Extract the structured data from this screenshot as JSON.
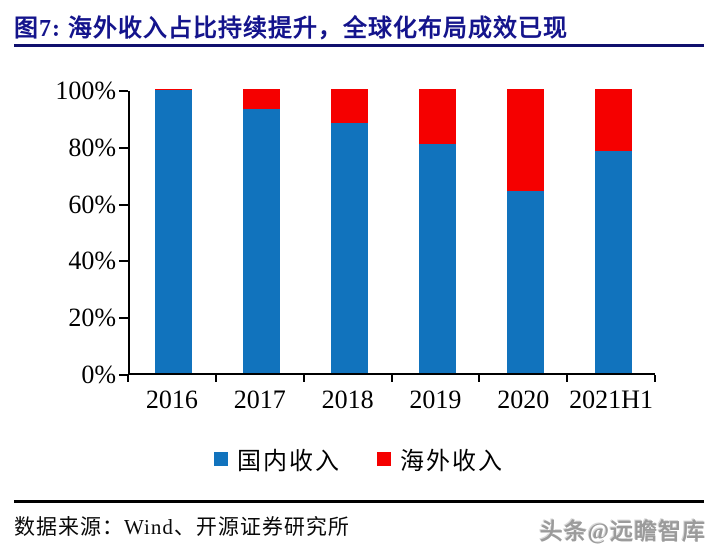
{
  "header": {
    "title": "图7:  海外收入占比持续提升，全球化布局成效已现"
  },
  "chart_data": {
    "type": "bar",
    "stacked": true,
    "title": "海外收入占比持续提升，全球化布局成效已现",
    "categories": [
      "2016",
      "2017",
      "2018",
      "2019",
      "2020",
      "2021H1"
    ],
    "series": [
      {
        "name": "国内收入",
        "color": "#1173BD",
        "values": [
          99.5,
          93,
          88,
          80.5,
          64,
          78
        ]
      },
      {
        "name": "海外收入",
        "color": "#F50000",
        "values": [
          0.5,
          7,
          12,
          19.5,
          36,
          22
        ]
      }
    ],
    "xlabel": "",
    "ylabel": "",
    "ylim": [
      0,
      100
    ],
    "ytick_step": 20,
    "ytick_labels": [
      "0%",
      "20%",
      "40%",
      "60%",
      "80%",
      "100%"
    ],
    "unit": "%",
    "grid": false,
    "legend_position": "bottom"
  },
  "footer": {
    "source": "数据来源：Wind、开源证券研究所",
    "watermark": "头条@远瞻智库"
  },
  "colors": {
    "title": "#14148C",
    "axis": "#000000",
    "domestic": "#1173BD",
    "overseas": "#F50000"
  }
}
